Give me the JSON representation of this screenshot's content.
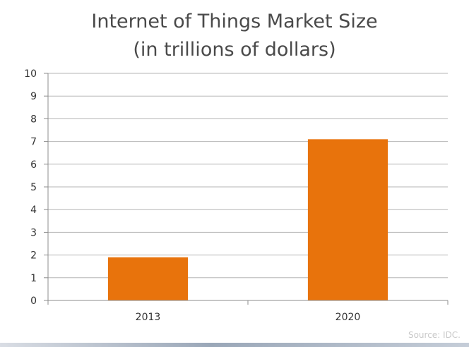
{
  "chart_data": {
    "type": "bar",
    "title_line1": "Internet of Things Market Size",
    "title_line2": "(in trillions of dollars)",
    "categories": [
      "2013",
      "2020"
    ],
    "values": [
      1.9,
      7.1
    ],
    "ylim": [
      0,
      10
    ],
    "yticks": [
      0,
      1,
      2,
      3,
      4,
      5,
      6,
      7,
      8,
      9,
      10
    ],
    "grid": true,
    "legend": "none",
    "bar_color": "#e8730c",
    "grid_color": "#b5b5b5"
  },
  "source": "Source: IDC."
}
